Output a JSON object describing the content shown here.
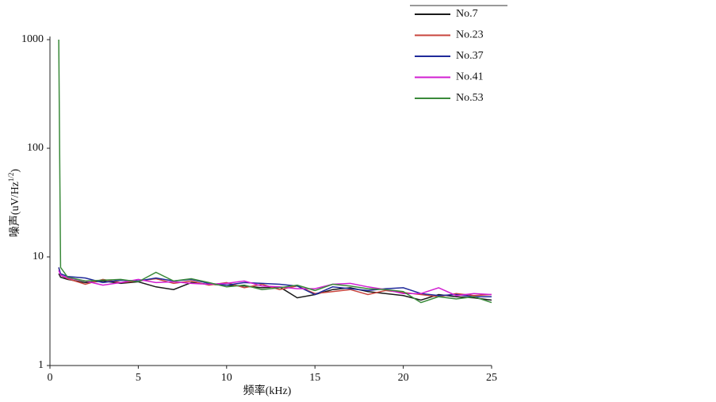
{
  "chart_data": {
    "type": "line",
    "xlabel": "频率(kHz)",
    "ylabel": {
      "text": "噪声(uV/Hz",
      "superscript": "1/2",
      "suffix": ")"
    },
    "x": [
      0.5,
      0.6,
      1,
      2,
      3,
      4,
      5,
      6,
      7,
      8,
      9,
      10,
      11,
      12,
      13,
      14,
      15,
      16,
      17,
      18,
      19,
      20,
      21,
      22,
      23,
      24,
      25
    ],
    "series": [
      {
        "name": "No.7",
        "color": "#1a1a1a",
        "values": [
          7,
          6.5,
          6.2,
          5.8,
          6,
          5.7,
          5.9,
          5.3,
          5,
          5.8,
          5.6,
          5.5,
          5.4,
          5.2,
          5.3,
          4.2,
          4.5,
          5,
          5.2,
          4.8,
          4.6,
          4.4,
          4,
          4.5,
          4.3,
          4.2,
          4
        ]
      },
      {
        "name": "No.23",
        "color": "#c8443c",
        "values": [
          8,
          6.8,
          6.3,
          5.6,
          6.2,
          5.8,
          6,
          6.3,
          5.7,
          6,
          5.5,
          5.8,
          5.2,
          5.6,
          5,
          5.4,
          4.6,
          4.8,
          5,
          4.5,
          4.9,
          4.7,
          4.5,
          4.3,
          4.6,
          4.4,
          4.5
        ]
      },
      {
        "name": "No.37",
        "color": "#1f2a9a",
        "values": [
          8,
          7,
          6.6,
          6.4,
          5.8,
          6.1,
          6,
          6.4,
          6,
          6.2,
          5.7,
          5.5,
          5.8,
          5.7,
          5.6,
          5.4,
          4.5,
          5.3,
          5.1,
          4.9,
          5.1,
          5.2,
          4.6,
          4.4,
          4.5,
          4.3,
          4.3
        ]
      },
      {
        "name": "No.41",
        "color": "#d21fd2",
        "values": [
          7.5,
          6.8,
          6.4,
          6,
          5.5,
          5.8,
          6.2,
          5.8,
          5.9,
          5.7,
          5.6,
          5.7,
          6,
          5.4,
          5.3,
          5.1,
          5.1,
          5.6,
          5.7,
          5.3,
          5,
          4.6,
          4.6,
          5.2,
          4.4,
          4.6,
          4.5
        ]
      },
      {
        "name": "No.53",
        "color": "#3a8a3a",
        "values": [
          1000,
          8,
          6.5,
          6,
          6.1,
          6.2,
          5.9,
          7.2,
          6,
          6.3,
          5.8,
          5.3,
          5.5,
          5,
          5.2,
          5.5,
          4.9,
          5.6,
          5.4,
          5.1,
          5,
          4.8,
          3.8,
          4.3,
          4.1,
          4.3,
          3.8
        ]
      }
    ],
    "xlim": [
      0,
      25
    ],
    "xticks": [
      0,
      5,
      10,
      15,
      20,
      25
    ],
    "ylim": [
      1,
      1000
    ],
    "yticks": [
      1,
      10,
      100,
      1000
    ],
    "ylog": true,
    "grid": false,
    "legend": "upper right"
  }
}
